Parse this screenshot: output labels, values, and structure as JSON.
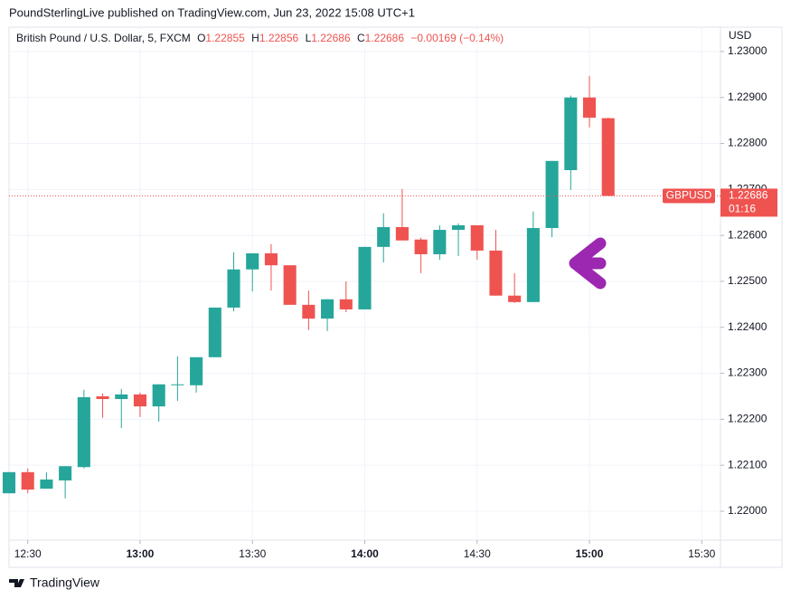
{
  "header": "PoundSterlingLive published on TradingView.com, Jun 23, 2022 15:08 UTC+1",
  "footer": "TradingView",
  "chart_data": {
    "type": "candlestick",
    "title": "British Pound / U.S. Dollar, 5, FXCM",
    "legend": {
      "o_label": "O",
      "o": "1.22855",
      "h_label": "H",
      "h": "1.22856",
      "l_label": "L",
      "l": "1.22686",
      "c_label": "C",
      "c": "1.22686",
      "change": "−0.00169 (−0.14%)"
    },
    "y_axis_label": "USD",
    "symbol": "GBPUSD",
    "last_price": 1.22686,
    "countdown": "01:16",
    "up_color": "#26a69a",
    "down_color": "#ef5350",
    "grid": true,
    "x": [
      0,
      1,
      2,
      3,
      4,
      5,
      6,
      7,
      8,
      9,
      10,
      11,
      12,
      13,
      14,
      15,
      16,
      17,
      18,
      19,
      20,
      21,
      22,
      23,
      24,
      25,
      26,
      27,
      28,
      29,
      30,
      31,
      32
    ],
    "open": [
      1.22039,
      1.22085,
      1.22049,
      1.22067,
      1.22096,
      1.2225,
      1.22244,
      1.22254,
      1.22228,
      1.22275,
      1.22274,
      1.22335,
      1.22443,
      1.22526,
      1.22561,
      1.22535,
      1.22449,
      1.22419,
      1.22461,
      1.22439,
      1.22575,
      1.22618,
      1.22591,
      1.22559,
      1.22612,
      1.22622,
      1.22567,
      1.22469,
      1.22455,
      1.22616,
      1.22742,
      1.229,
      1.22855
    ],
    "high": [
      1.22085,
      1.22093,
      1.22085,
      1.22098,
      1.22264,
      1.22256,
      1.22266,
      1.22258,
      1.22276,
      1.22337,
      1.22335,
      1.22443,
      1.22563,
      1.22561,
      1.22581,
      1.22535,
      1.2248,
      1.22461,
      1.225,
      1.22575,
      1.22648,
      1.22701,
      1.22595,
      1.22622,
      1.22626,
      1.22622,
      1.22612,
      1.22518,
      1.22652,
      1.22762,
      1.22904,
      1.22947,
      1.22856
    ],
    "low": [
      1.22039,
      1.22039,
      1.22049,
      1.22028,
      1.22093,
      1.22203,
      1.22181,
      1.22205,
      1.22195,
      1.2224,
      1.22258,
      1.22335,
      1.22435,
      1.22478,
      1.2248,
      1.22449,
      1.22394,
      1.22392,
      1.22433,
      1.22439,
      1.22541,
      1.22589,
      1.22518,
      1.22547,
      1.22555,
      1.22547,
      1.22469,
      1.22453,
      1.22455,
      1.22596,
      1.22699,
      1.22835,
      1.22686
    ],
    "close": [
      1.22085,
      1.22047,
      1.22069,
      1.22098,
      1.22248,
      1.22244,
      1.22254,
      1.22228,
      1.22276,
      1.22276,
      1.22335,
      1.22443,
      1.22526,
      1.22561,
      1.22535,
      1.22449,
      1.22419,
      1.22461,
      1.22439,
      1.22575,
      1.22618,
      1.22589,
      1.22559,
      1.22612,
      1.22622,
      1.22567,
      1.22469,
      1.22455,
      1.22616,
      1.22762,
      1.229,
      1.22856,
      1.22686
    ],
    "xlim": [
      0,
      38
    ],
    "xticks": [
      {
        "value": 1,
        "label": "12:30"
      },
      {
        "value": 7,
        "label": "13:00"
      },
      {
        "value": 13,
        "label": "13:30"
      },
      {
        "value": 19,
        "label": "14:00"
      },
      {
        "value": 25,
        "label": "14:30"
      },
      {
        "value": 31,
        "label": "15:00"
      },
      {
        "value": 37,
        "label": "15:30"
      }
    ],
    "ylim": [
      1.21937,
      1.23053
    ],
    "yticks": [
      {
        "value": 1.22,
        "label": "1.22000"
      },
      {
        "value": 1.221,
        "label": "1.22100"
      },
      {
        "value": 1.222,
        "label": "1.22200"
      },
      {
        "value": 1.223,
        "label": "1.22300"
      },
      {
        "value": 1.224,
        "label": "1.22400"
      },
      {
        "value": 1.225,
        "label": "1.22500"
      },
      {
        "value": 1.226,
        "label": "1.22600"
      },
      {
        "value": 1.227,
        "label": "1.22700"
      },
      {
        "value": 1.228,
        "label": "1.22800"
      },
      {
        "value": 1.229,
        "label": "1.22900"
      },
      {
        "value": 1.23,
        "label": "1.23000"
      }
    ]
  }
}
